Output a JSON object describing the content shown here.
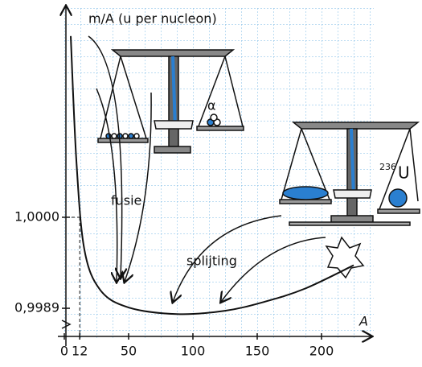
{
  "chart_data": {
    "type": "line",
    "y_label": "m/A (u per nucleon)",
    "x_label": "A",
    "x": [
      5,
      9.4,
      15.6,
      28,
      50,
      87.5,
      125,
      156,
      187.5,
      225
    ],
    "values": [
      1.00219,
      1.00068,
      0.99961,
      0.99912,
      0.99891,
      0.99883,
      0.99887,
      0.99898,
      0.99914,
      0.99942
    ],
    "color": "#111111",
    "xlim": [
      0,
      240
    ],
    "ylim": [
      0.99856,
      1.00248
    ],
    "xticks": [
      0,
      12,
      50,
      100,
      150,
      200
    ],
    "yticks": [
      {
        "value": 1.0,
        "label": "1,0000"
      },
      {
        "value": 0.9989,
        "label": "0,9989"
      }
    ],
    "guides": [
      {
        "x": 12,
        "y": 1.0
      }
    ],
    "annotations": {
      "fusion": "fusie",
      "fission": "splijting",
      "alpha": "α",
      "uranium_mass": "236",
      "uranium_symbol": "U"
    }
  }
}
